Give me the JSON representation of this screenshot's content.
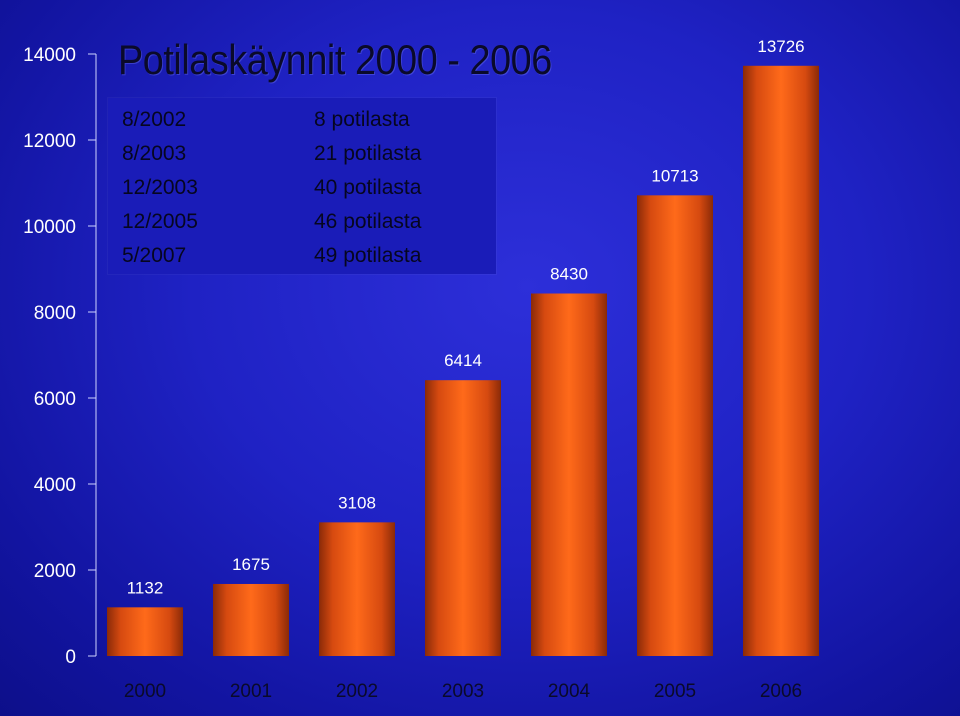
{
  "chart_data": {
    "type": "bar",
    "title": "Potilaskäynnit 2000 - 2006",
    "categories": [
      "2000",
      "2001",
      "2002",
      "2003",
      "2004",
      "2005",
      "2006"
    ],
    "values": [
      1132,
      1675,
      3108,
      6414,
      8430,
      10713,
      13726
    ],
    "data_labels": [
      "1132",
      "1675",
      "3108",
      "6414",
      "8430",
      "10713",
      "13726"
    ],
    "ylim": [
      0,
      14000
    ],
    "yticks": [
      "0",
      "2000",
      "4000",
      "6000",
      "8000",
      "10000",
      "12000",
      "14000"
    ],
    "xlabel": "",
    "ylabel": "",
    "grid": false,
    "bar_colors": {
      "center": "#ff6a1a",
      "edge": "#8a2a08"
    },
    "annotations": [
      {
        "date": "8/2002",
        "count": "8 potilasta"
      },
      {
        "date": "8/2003",
        "count": "21 potilasta"
      },
      {
        "date": "12/2003",
        "count": "40 potilasta"
      },
      {
        "date": "12/2005",
        "count": "46 potilasta"
      },
      {
        "date": "5/2007",
        "count": "49 potilasta"
      }
    ]
  }
}
